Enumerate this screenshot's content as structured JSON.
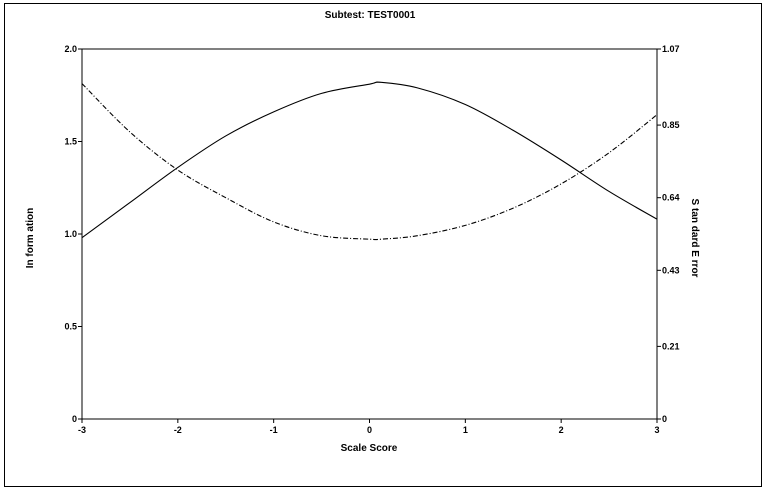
{
  "chart_data": {
    "type": "line",
    "title": "Subtest: TEST0001",
    "xlabel": "Scale Score",
    "ylabel_left": "In form ation",
    "ylabel_right": "S tan dard  E rror",
    "xlim": [
      -3,
      3
    ],
    "ylim_left": [
      0,
      2.0
    ],
    "ylim_right": [
      0,
      1.07
    ],
    "x_ticks": [
      -3,
      -2,
      -1,
      0,
      1,
      2,
      3
    ],
    "x_tick_labels": [
      "-3",
      "-2",
      "-1",
      "0",
      "1",
      "2",
      "3"
    ],
    "y_left_ticks": [
      0,
      0.5,
      1.0,
      1.5,
      2.0
    ],
    "y_left_tick_labels": [
      "0",
      "0.5",
      "1.0",
      "1.5",
      "2.0"
    ],
    "y_right_ticks": [
      0,
      0.21,
      0.43,
      0.64,
      0.85,
      1.07
    ],
    "y_right_tick_labels": [
      "0",
      "0.21",
      "0.43",
      "0.64",
      "0.85",
      "1.07"
    ],
    "grid": false,
    "legend": "none",
    "series": [
      {
        "axis": "left",
        "style": "solid",
        "x": [
          -3,
          -2.5,
          -2,
          -1.5,
          -1,
          -0.5,
          0,
          0.12,
          0.5,
          1,
          1.5,
          2,
          2.5,
          3
        ],
        "values": [
          0.98,
          1.17,
          1.36,
          1.53,
          1.66,
          1.76,
          1.81,
          1.82,
          1.79,
          1.7,
          1.56,
          1.4,
          1.23,
          1.08
        ]
      },
      {
        "axis": "right",
        "style": "dash-dot",
        "x": [
          -3,
          -2.5,
          -2,
          -1.5,
          -1,
          -0.5,
          0,
          0.12,
          0.5,
          1,
          1.5,
          2,
          2.5,
          3
        ],
        "values": [
          0.97,
          0.83,
          0.72,
          0.64,
          0.57,
          0.53,
          0.52,
          0.52,
          0.53,
          0.56,
          0.61,
          0.68,
          0.77,
          0.88
        ]
      }
    ]
  }
}
